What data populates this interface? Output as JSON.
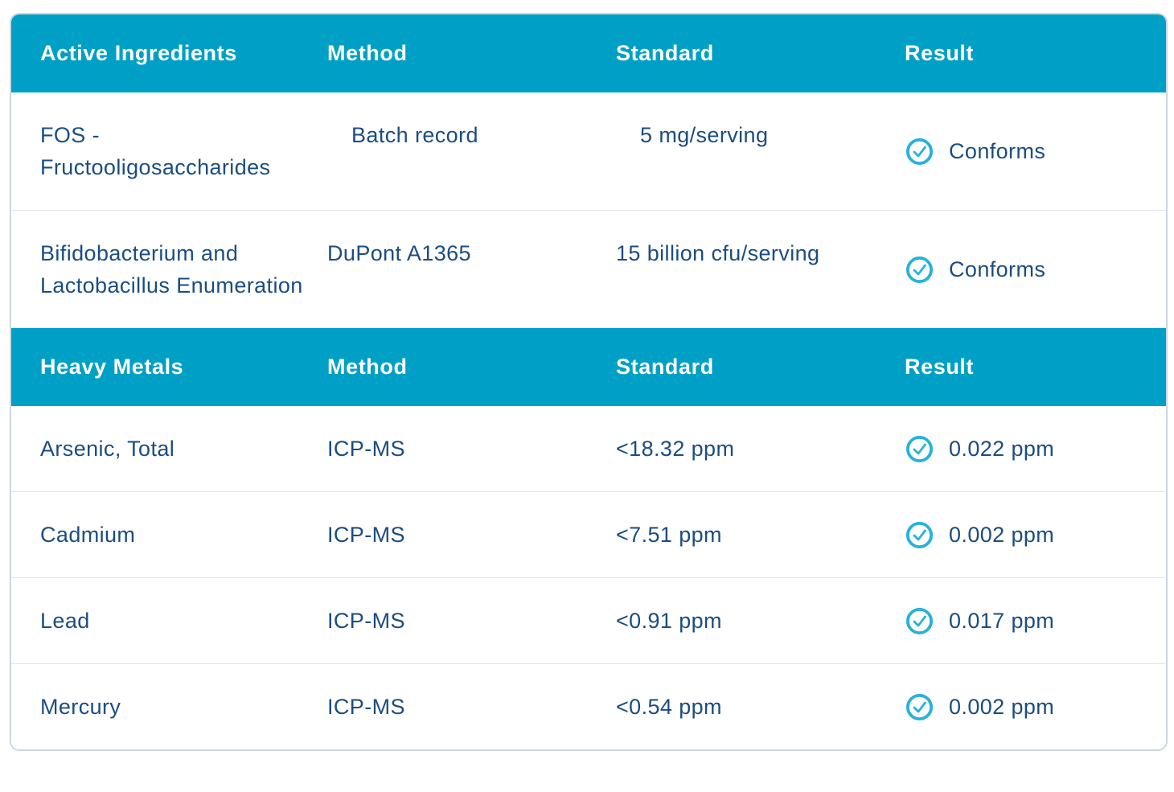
{
  "table": {
    "colors": {
      "section_header_bg": "#00a0c6",
      "section_header_text": "#ffffff",
      "body_text": "#1b4d80",
      "check_icon": "#25b2d8",
      "card_border": "#ccd7de",
      "row_divider": "#dde4ea"
    },
    "result_icon_name": "check-circle-icon",
    "sections": [
      {
        "columns": [
          "Active Ingredients",
          "Method",
          "Standard",
          "Result"
        ],
        "rows": [
          {
            "name": "FOS - Fructooligosaccharides",
            "method": "Batch record",
            "standard": "5 mg/serving",
            "result": "Conforms",
            "pass": true
          },
          {
            "name": "Bifidobacterium and Lactobacillus Enumeration",
            "method": "DuPont A1365",
            "standard": "15 billion cfu/serving",
            "result": "Conforms",
            "pass": true
          }
        ]
      },
      {
        "columns": [
          "Heavy Metals",
          "Method",
          "Standard",
          "Result"
        ],
        "rows": [
          {
            "name": "Arsenic, Total",
            "method": "ICP-MS",
            "standard": "<18.32 ppm",
            "result": "0.022 ppm",
            "pass": true
          },
          {
            "name": "Cadmium",
            "method": "ICP-MS",
            "standard": "<7.51 ppm",
            "result": "0.002 ppm",
            "pass": true
          },
          {
            "name": "Lead",
            "method": "ICP-MS",
            "standard": "<0.91 ppm",
            "result": "0.017 ppm",
            "pass": true
          },
          {
            "name": "Mercury",
            "method": "ICP-MS",
            "standard": "<0.54 ppm",
            "result": "0.002 ppm",
            "pass": true
          }
        ]
      }
    ]
  }
}
